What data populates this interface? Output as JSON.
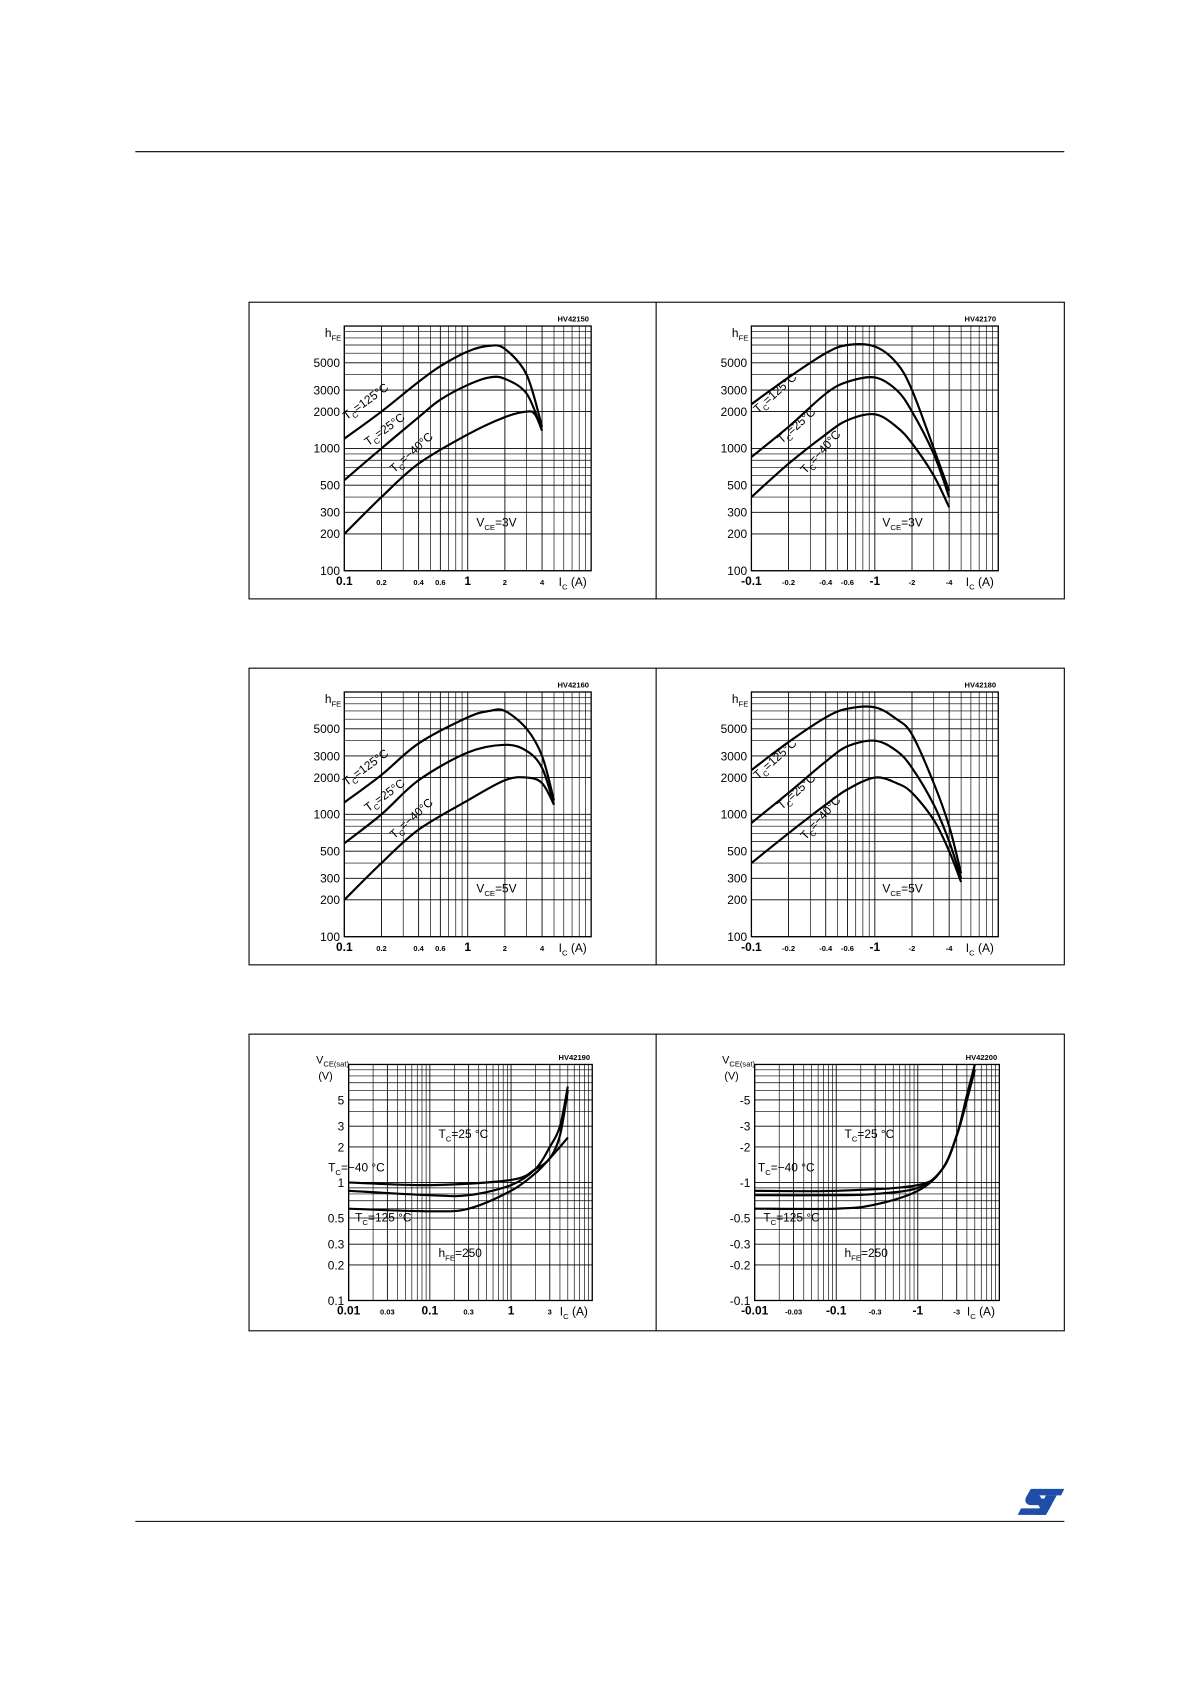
{
  "chart_data": [
    {
      "type": "line",
      "code": "HV42150",
      "log_x": true,
      "log_y": true,
      "grid": true,
      "ylabel": {
        "base": "h",
        "sub": "FE"
      },
      "xlabel": {
        "base": "I",
        "sub": "C",
        "text": " (A)"
      },
      "condition": {
        "base": "V",
        "sub": "CE",
        "text": "=3V"
      },
      "xlim": [
        0.1,
        10
      ],
      "ylim": [
        100,
        10000
      ],
      "xticks": [
        0.1,
        0.2,
        0.4,
        0.6,
        1,
        2,
        4
      ],
      "yticks": [
        100,
        200,
        300,
        500,
        1000,
        2000,
        3000,
        5000
      ],
      "series": [
        {
          "name": {
            "base": "T",
            "sub": "C",
            "text": "=125°C"
          },
          "color": "#000000",
          "x": [
            0.1,
            0.2,
            0.4,
            0.6,
            1,
            1.5,
            2,
            3,
            4
          ],
          "values": [
            1200,
            2000,
            3500,
            4700,
            6200,
            6900,
            6500,
            4000,
            1500
          ]
        },
        {
          "name": {
            "base": "T",
            "sub": "C",
            "text": "=25°C"
          },
          "color": "#000000",
          "x": [
            0.1,
            0.2,
            0.4,
            0.6,
            1,
            1.5,
            2,
            3,
            4
          ],
          "values": [
            550,
            1000,
            1800,
            2500,
            3300,
            3800,
            3700,
            2800,
            1400
          ]
        },
        {
          "name": {
            "base": "T",
            "sub": "C",
            "text": "=−40°C"
          },
          "color": "#000000",
          "x": [
            0.1,
            0.2,
            0.4,
            1,
            2,
            3,
            3.5,
            4
          ],
          "values": [
            200,
            400,
            750,
            1300,
            1800,
            2000,
            1900,
            1400
          ]
        }
      ]
    },
    {
      "type": "line",
      "code": "HV42170",
      "log_x": true,
      "log_y": true,
      "grid": true,
      "ylabel": {
        "base": "h",
        "sub": "FE"
      },
      "xlabel": {
        "base": "I",
        "sub": "C",
        "text": " (A)"
      },
      "condition": {
        "base": "V",
        "sub": "CE",
        "text": "=3V"
      },
      "xlim": [
        -0.1,
        -10
      ],
      "ylim": [
        100,
        10000
      ],
      "xticks": [
        -0.1,
        -0.2,
        -0.4,
        -0.6,
        -1,
        -2,
        -4
      ],
      "yticks": [
        100,
        200,
        300,
        500,
        1000,
        2000,
        3000,
        5000
      ],
      "series": [
        {
          "name": {
            "base": "T",
            "sub": "C",
            "text": "=125°C"
          },
          "color": "#000000",
          "x": [
            -0.1,
            -0.2,
            -0.4,
            -0.6,
            -1,
            -1.5,
            -2,
            -3,
            -4
          ],
          "values": [
            2300,
            3800,
            6000,
            7000,
            6800,
            5000,
            3000,
            1000,
            450
          ]
        },
        {
          "name": {
            "base": "T",
            "sub": "C",
            "text": "=25°C"
          },
          "color": "#000000",
          "x": [
            -0.1,
            -0.2,
            -0.4,
            -0.6,
            -1,
            -1.5,
            -2,
            -3,
            -4
          ],
          "values": [
            850,
            1500,
            2800,
            3500,
            3800,
            3000,
            2000,
            900,
            400
          ]
        },
        {
          "name": {
            "base": "T",
            "sub": "C",
            "text": "=−40°C"
          },
          "color": "#000000",
          "x": [
            -0.1,
            -0.2,
            -0.4,
            -0.6,
            -1,
            -1.5,
            -2,
            -3,
            -4
          ],
          "values": [
            400,
            750,
            1300,
            1700,
            1900,
            1500,
            1100,
            600,
            330
          ]
        }
      ]
    },
    {
      "type": "line",
      "code": "HV42160",
      "log_x": true,
      "log_y": true,
      "grid": true,
      "ylabel": {
        "base": "h",
        "sub": "FE"
      },
      "xlabel": {
        "base": "I",
        "sub": "C",
        "text": " (A)"
      },
      "condition": {
        "base": "V",
        "sub": "CE",
        "text": "=5V"
      },
      "xlim": [
        0.1,
        10
      ],
      "ylim": [
        100,
        10000
      ],
      "xticks": [
        0.1,
        0.2,
        0.4,
        0.6,
        1,
        2,
        4
      ],
      "yticks": [
        100,
        200,
        300,
        500,
        1000,
        2000,
        3000,
        5000
      ],
      "series": [
        {
          "name": {
            "base": "T",
            "sub": "C",
            "text": "=125°C"
          },
          "color": "#000000",
          "x": [
            0.1,
            0.2,
            0.4,
            1,
            1.5,
            2,
            3,
            4,
            5
          ],
          "values": [
            1250,
            2100,
            3800,
            6200,
            7000,
            7000,
            5000,
            3000,
            1300
          ]
        },
        {
          "name": {
            "base": "T",
            "sub": "C",
            "text": "=25°C"
          },
          "color": "#000000",
          "x": [
            0.1,
            0.2,
            0.4,
            1,
            2,
            3,
            4,
            5
          ],
          "values": [
            580,
            1000,
            1900,
            3200,
            3700,
            3300,
            2400,
            1200
          ]
        },
        {
          "name": {
            "base": "T",
            "sub": "C",
            "text": "=−40°C"
          },
          "color": "#000000",
          "x": [
            0.1,
            0.2,
            0.4,
            1,
            2,
            3,
            4,
            5
          ],
          "values": [
            200,
            400,
            750,
            1300,
            1900,
            2000,
            1800,
            1200
          ]
        }
      ]
    },
    {
      "type": "line",
      "code": "HV42180",
      "log_x": true,
      "log_y": true,
      "grid": true,
      "ylabel": {
        "base": "h",
        "sub": "FE"
      },
      "xlabel": {
        "base": "I",
        "sub": "C",
        "text": " (A)"
      },
      "condition": {
        "base": "V",
        "sub": "CE",
        "text": "=5V"
      },
      "xlim": [
        -0.1,
        -10
      ],
      "ylim": [
        100,
        10000
      ],
      "xticks": [
        -0.1,
        -0.2,
        -0.4,
        -0.6,
        -1,
        -2,
        -4
      ],
      "yticks": [
        100,
        200,
        300,
        500,
        1000,
        2000,
        3000,
        5000
      ],
      "series": [
        {
          "name": {
            "base": "T",
            "sub": "C",
            "text": "=125°C"
          },
          "color": "#000000",
          "x": [
            -0.1,
            -0.2,
            -0.4,
            -0.6,
            -1,
            -1.5,
            -2,
            -3,
            -4,
            -5
          ],
          "values": [
            2300,
            3900,
            6200,
            7300,
            7500,
            6000,
            4500,
            1800,
            800,
            330
          ]
        },
        {
          "name": {
            "base": "T",
            "sub": "C",
            "text": "=25°C"
          },
          "color": "#000000",
          "x": [
            -0.1,
            -0.2,
            -0.4,
            -0.6,
            -1,
            -1.5,
            -2,
            -3,
            -4,
            -5
          ],
          "values": [
            850,
            1500,
            2700,
            3600,
            4000,
            3300,
            2400,
            1200,
            600,
            300
          ]
        },
        {
          "name": {
            "base": "T",
            "sub": "C",
            "text": "=−40°C"
          },
          "color": "#000000",
          "x": [
            -0.1,
            -0.2,
            -0.4,
            -0.6,
            -1,
            -1.5,
            -2,
            -3,
            -4,
            -5
          ],
          "values": [
            400,
            700,
            1200,
            1600,
            2000,
            1800,
            1500,
            900,
            500,
            280
          ]
        }
      ]
    },
    {
      "type": "line",
      "code": "HV42190",
      "log_x": true,
      "log_y": true,
      "grid": true,
      "ylabel": {
        "base": "V",
        "sub": "CE(sat)",
        "text": "(V)"
      },
      "xlabel": {
        "base": "I",
        "sub": "C",
        "text": " (A)"
      },
      "condition": {
        "base": "h",
        "sub": "FE",
        "text": "=250"
      },
      "xlim": [
        0.01,
        10
      ],
      "ylim": [
        0.1,
        10
      ],
      "xticks": [
        0.01,
        0.03,
        0.1,
        0.3,
        1,
        3
      ],
      "yticks": [
        0.1,
        0.2,
        0.3,
        0.5,
        1,
        2,
        3,
        5
      ],
      "series": [
        {
          "name": {
            "base": "T",
            "sub": "C",
            "text": "=125 °C"
          },
          "color": "#000000",
          "x": [
            0.01,
            0.1,
            0.3,
            1,
            2,
            3,
            4,
            5
          ],
          "values": [
            0.6,
            0.57,
            0.6,
            0.85,
            1.2,
            1.6,
            2,
            2.4
          ]
        },
        {
          "name": {
            "base": "T",
            "sub": "C",
            "text": "=25 °C"
          },
          "color": "#000000",
          "x": [
            0.01,
            0.1,
            0.3,
            1,
            2,
            3,
            4,
            5
          ],
          "values": [
            0.85,
            0.78,
            0.78,
            0.95,
            1.3,
            2,
            3,
            6.5
          ]
        },
        {
          "name": {
            "base": "T",
            "sub": "C",
            "text": "=−40 °C"
          },
          "color": "#000000",
          "x": [
            0.01,
            0.1,
            1,
            2,
            3,
            4,
            5
          ],
          "values": [
            1,
            0.95,
            1.05,
            1.3,
            1.6,
            2.5,
            6
          ]
        }
      ]
    },
    {
      "type": "line",
      "code": "HV42200",
      "log_x": true,
      "log_y": true,
      "grid": true,
      "ylabel": {
        "base": "V",
        "sub": "CE(sat)",
        "text": "(V)"
      },
      "xlabel": {
        "base": "I",
        "sub": "C",
        "text": " (A)"
      },
      "condition": {
        "base": "h",
        "sub": "FE",
        "text": "=250"
      },
      "xlim": [
        -0.01,
        -10
      ],
      "ylim": [
        -0.1,
        -10
      ],
      "xticks": [
        -0.01,
        -0.03,
        -0.1,
        -0.3,
        -1,
        -3
      ],
      "yticks": [
        -0.1,
        -0.2,
        -0.3,
        -0.5,
        -1,
        -2,
        -3,
        -5
      ],
      "series": [
        {
          "name": {
            "base": "T",
            "sub": "C",
            "text": "=125 °C"
          },
          "color": "#000000",
          "x": [
            -0.01,
            -0.1,
            -0.3,
            -1,
            -2,
            -3,
            -4,
            -4.5
          ],
          "values": [
            -0.6,
            -0.6,
            -0.65,
            -0.85,
            -1.3,
            -2.5,
            -5,
            -7
          ]
        },
        {
          "name": {
            "base": "T",
            "sub": "C",
            "text": "=25 °C"
          },
          "color": "#000000",
          "x": [
            -0.01,
            -0.1,
            -0.3,
            -1,
            -2,
            -3,
            -4,
            -5
          ],
          "values": [
            -0.78,
            -0.78,
            -0.8,
            -0.9,
            -1.3,
            -2.5,
            -5.5,
            -10
          ]
        },
        {
          "name": {
            "base": "T",
            "sub": "C",
            "text": "=−40 °C"
          },
          "color": "#000000",
          "x": [
            -0.01,
            -0.1,
            -1,
            -2,
            -3,
            -4,
            -5
          ],
          "values": [
            -0.85,
            -0.85,
            -0.95,
            -1.3,
            -2.5,
            -5,
            -9
          ]
        }
      ]
    }
  ]
}
